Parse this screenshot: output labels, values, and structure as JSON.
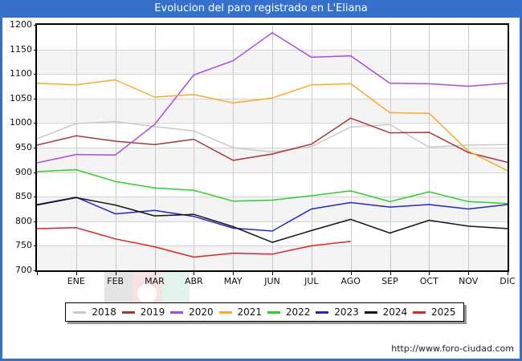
{
  "title_bar": "Evolucion del paro registrado en L'Eliana",
  "footer": {
    "url": "http://www.foro-ciudad.com"
  },
  "colors": {
    "chrome_blue": "#3570cd",
    "plot_band_gray": "#f4f4f4",
    "gridline": "#c9c9c9",
    "axis_frame": "#000000"
  },
  "chart_data": {
    "type": "line",
    "title": "Evolucion del paro registrado en L'Eliana",
    "xlabel": "",
    "ylabel": "",
    "ylim": [
      700,
      1200
    ],
    "grid": true,
    "legend_position": "bottom",
    "y_ticks": [
      1200,
      1150,
      1100,
      1050,
      1000,
      950,
      900,
      850,
      800,
      750,
      700
    ],
    "categories": [
      "",
      "ENE",
      "FEB",
      "MAR",
      "ABR",
      "MAY",
      "JUN",
      "JUL",
      "AGO",
      "SEP",
      "OCT",
      "NOV",
      "DIC"
    ],
    "series": [
      {
        "name": "2018",
        "color": "#c9c9c9",
        "values": [
          968,
          999,
          1003,
          993,
          984,
          950,
          941,
          952,
          992,
          997,
          951,
          955,
          956
        ]
      },
      {
        "name": "2019",
        "color": "#ad3434",
        "values": [
          955,
          974,
          963,
          956,
          967,
          924,
          937,
          957,
          1010,
          980,
          981,
          940,
          920
        ]
      },
      {
        "name": "2020",
        "color": "#a94ae0",
        "values": [
          919,
          936,
          935,
          997,
          1098,
          1127,
          1184,
          1134,
          1137,
          1081,
          1080,
          1075,
          1081
        ]
      },
      {
        "name": "2021",
        "color": "#ffa826",
        "values": [
          1081,
          1078,
          1088,
          1053,
          1058,
          1041,
          1051,
          1078,
          1080,
          1021,
          1020,
          943,
          903
        ]
      },
      {
        "name": "2022",
        "color": "#28d228",
        "values": [
          901,
          905,
          881,
          868,
          863,
          841,
          843,
          852,
          862,
          840,
          860,
          840,
          836
        ]
      },
      {
        "name": "2023",
        "color": "#2525cf",
        "values": [
          834,
          849,
          815,
          822,
          810,
          786,
          780,
          825,
          838,
          829,
          834,
          825,
          834
        ]
      },
      {
        "name": "2024",
        "color": "#151515",
        "values": [
          833,
          848,
          833,
          811,
          814,
          789,
          757,
          781,
          804,
          776,
          802,
          790,
          785
        ]
      },
      {
        "name": "2025",
        "color": "#e32222",
        "values": [
          785,
          787,
          764,
          748,
          727,
          735,
          733,
          750,
          759
        ]
      }
    ]
  }
}
